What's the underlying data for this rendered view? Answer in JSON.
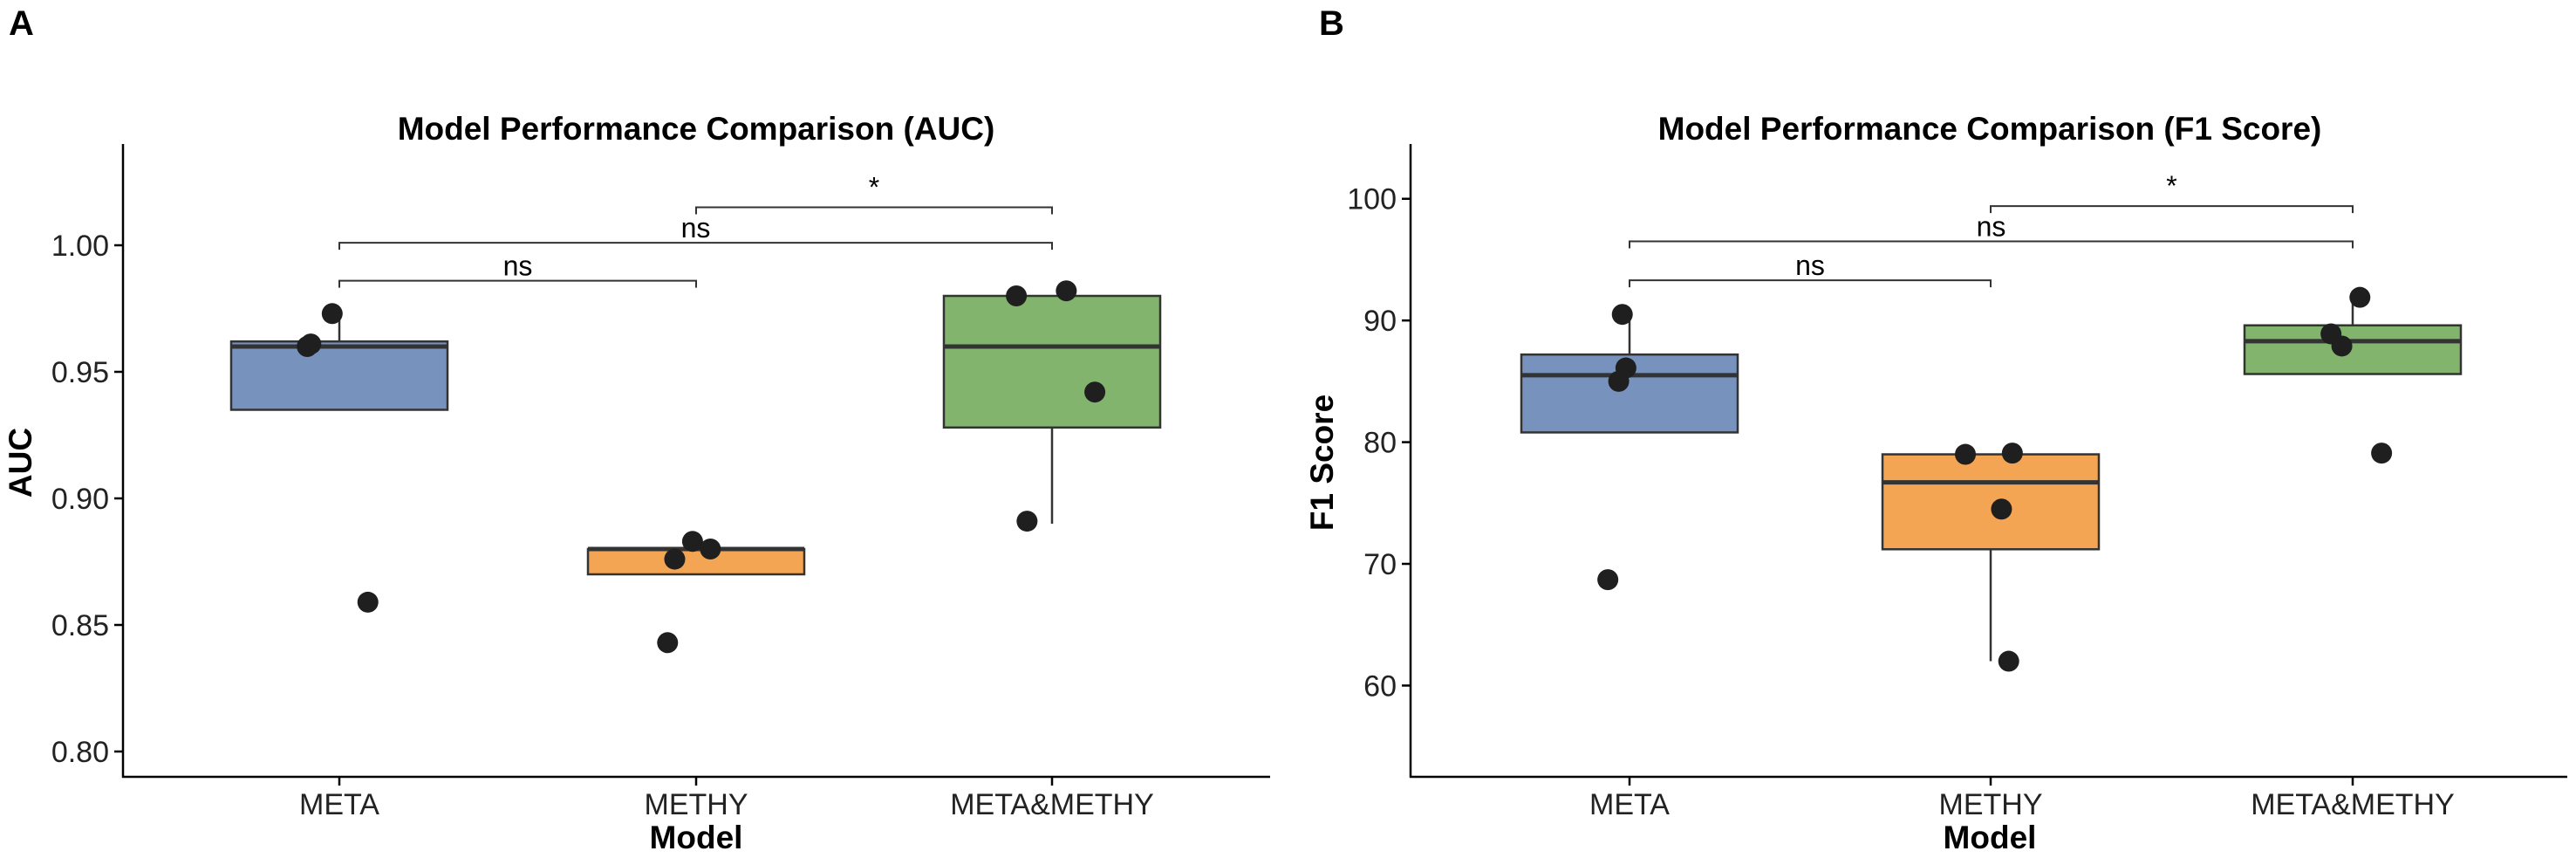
{
  "chart_data": [
    {
      "panel": "A",
      "type": "box",
      "title": "Model Performance Comparison (AUC)",
      "xlabel": "Model",
      "ylabel": "AUC",
      "categories": [
        "META",
        "METHY",
        "META&METHY"
      ],
      "colors": [
        "#7793bd",
        "#f4a553",
        "#82b46d"
      ],
      "ylim": [
        0.79,
        1.04
      ],
      "yticks": [
        0.8,
        0.85,
        0.9,
        0.95,
        1.0
      ],
      "ytick_labels": [
        "0.80",
        "0.85",
        "0.90",
        "0.95",
        "1.00"
      ],
      "boxes": [
        {
          "q1": 0.935,
          "median": 0.96,
          "q3": 0.962,
          "whisker_low": 0.935,
          "whisker_high": 0.973
        },
        {
          "q1": 0.87,
          "median": 0.88,
          "q3": 0.88,
          "whisker_low": 0.87,
          "whisker_high": 0.88
        },
        {
          "q1": 0.928,
          "median": 0.96,
          "q3": 0.98,
          "whisker_low": 0.89,
          "whisker_high": 0.98
        }
      ],
      "points": [
        [
          0.973,
          0.961,
          0.96,
          0.859
        ],
        [
          0.883,
          0.88,
          0.876,
          0.843
        ],
        [
          0.982,
          0.98,
          0.942,
          0.891
        ]
      ],
      "point_jitter": [
        [
          -0.02,
          -0.08,
          -0.09,
          0.08
        ],
        [
          -0.01,
          0.04,
          -0.06,
          -0.08
        ],
        [
          0.04,
          -0.1,
          0.12,
          -0.07
        ]
      ],
      "comparisons": [
        {
          "from": 0,
          "to": 1,
          "y": 0.986,
          "label": "ns"
        },
        {
          "from": 0,
          "to": 2,
          "y": 1.001,
          "label": "ns"
        },
        {
          "from": 1,
          "to": 2,
          "y": 1.015,
          "label": "*"
        }
      ]
    },
    {
      "panel": "B",
      "type": "box",
      "title": "Model Performance Comparison (F1 Score)",
      "xlabel": "Model",
      "ylabel": "F1 Score",
      "categories": [
        "META",
        "METHY",
        "META&METHY"
      ],
      "colors": [
        "#7793bd",
        "#f4a553",
        "#82b46d"
      ],
      "ylim": [
        52.5,
        104.5
      ],
      "yticks": [
        60,
        70,
        80,
        90,
        100
      ],
      "ytick_labels": [
        "60",
        "70",
        "80",
        "90",
        "100"
      ],
      "boxes": [
        {
          "q1": 80.8,
          "median": 85.5,
          "q3": 87.2,
          "whisker_low": 80.8,
          "whisker_high": 90.5
        },
        {
          "q1": 71.2,
          "median": 76.7,
          "q3": 79.0,
          "whisker_low": 62.0,
          "whisker_high": 79.0
        },
        {
          "q1": 85.6,
          "median": 88.3,
          "q3": 89.6,
          "whisker_low": 85.6,
          "whisker_high": 91.9
        }
      ],
      "points": [
        [
          90.5,
          86.1,
          85.0,
          68.7
        ],
        [
          79.1,
          79.0,
          74.5,
          62.0
        ],
        [
          91.9,
          88.9,
          87.9,
          79.1
        ]
      ],
      "point_jitter": [
        [
          -0.02,
          -0.01,
          -0.03,
          -0.06
        ],
        [
          0.06,
          -0.07,
          0.03,
          0.05
        ],
        [
          0.02,
          -0.06,
          -0.03,
          0.08
        ]
      ],
      "comparisons": [
        {
          "from": 0,
          "to": 1,
          "y": 93.3,
          "label": "ns"
        },
        {
          "from": 0,
          "to": 2,
          "y": 96.5,
          "label": "ns"
        },
        {
          "from": 1,
          "to": 2,
          "y": 99.4,
          "label": "*"
        }
      ]
    }
  ]
}
